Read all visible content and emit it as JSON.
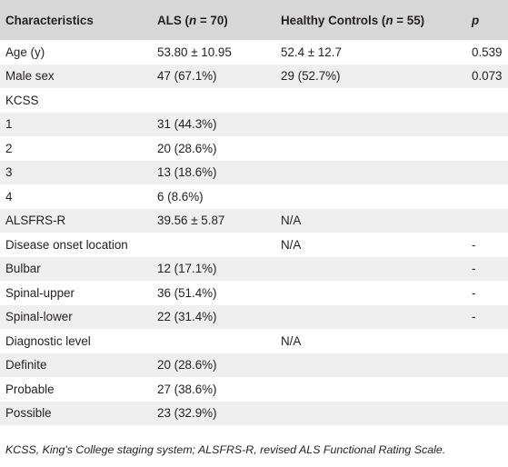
{
  "header": {
    "characteristics": "Characteristics",
    "als_prefix": "ALS (",
    "als_n": "n",
    "als_suffix": " = 70)",
    "hc_prefix": "Healthy Controls (",
    "hc_n": "n",
    "hc_suffix": " = 55)",
    "p": "p"
  },
  "rows": [
    {
      "label": "Age (y)",
      "als": "53.80 ± 10.95",
      "hc": "52.4 ± 12.7",
      "p": "0.539"
    },
    {
      "label": "Male sex",
      "als": "47 (67.1%)",
      "hc": "29 (52.7%)",
      "p": "0.073"
    },
    {
      "label": "KCSS",
      "als": "",
      "hc": "",
      "p": ""
    },
    {
      "label": "1",
      "als": "31 (44.3%)",
      "hc": "",
      "p": ""
    },
    {
      "label": "2",
      "als": "20 (28.6%)",
      "hc": "",
      "p": ""
    },
    {
      "label": "3",
      "als": "13 (18.6%)",
      "hc": "",
      "p": ""
    },
    {
      "label": "4",
      "als": "6 (8.6%)",
      "hc": "",
      "p": ""
    },
    {
      "label": "ALSFRS-R",
      "als": "39.56 ± 5.87",
      "hc": "N/A",
      "p": ""
    },
    {
      "label": "Disease onset location",
      "als": "",
      "hc": "N/A",
      "p": "-"
    },
    {
      "label": "Bulbar",
      "als": "12 (17.1%)",
      "hc": "",
      "p": "-"
    },
    {
      "label": "Spinal-upper",
      "als": "36 (51.4%)",
      "hc": "",
      "p": "-"
    },
    {
      "label": "Spinal-lower",
      "als": "22 (31.4%)",
      "hc": "",
      "p": "-"
    },
    {
      "label": "Diagnostic level",
      "als": "",
      "hc": "N/A",
      "p": ""
    },
    {
      "label": "Definite",
      "als": "20 (28.6%)",
      "hc": "",
      "p": ""
    },
    {
      "label": "Probable",
      "als": "27 (38.6%)",
      "hc": "",
      "p": ""
    },
    {
      "label": "Possible",
      "als": "23 (32.9%)",
      "hc": "",
      "p": ""
    }
  ],
  "footnote": "KCSS, King's College staging system; ALSFRS-R, revised ALS Functional Rating Scale."
}
